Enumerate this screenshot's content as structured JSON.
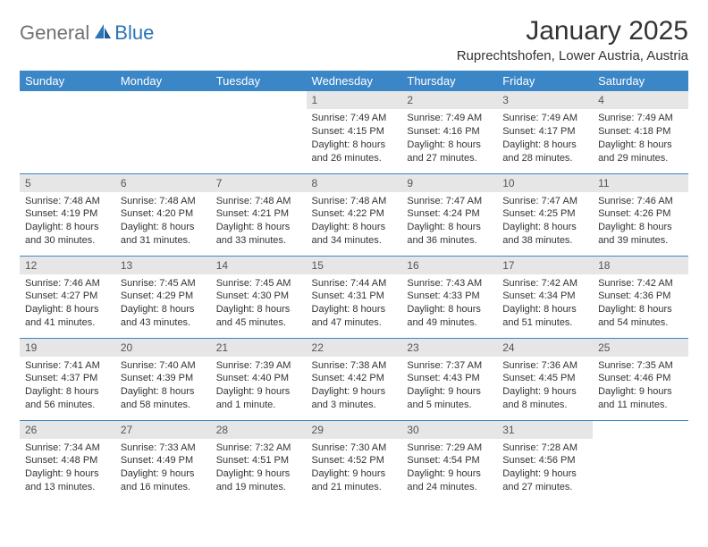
{
  "logo": {
    "general": "General",
    "blue": "Blue"
  },
  "title": "January 2025",
  "location": "Ruprechtshofen, Lower Austria, Austria",
  "colors": {
    "header_bg": "#3b86c7",
    "header_text": "#ffffff",
    "daynum_bg": "#e6e6e6",
    "daynum_text": "#555555",
    "body_text": "#333333",
    "rule": "#3b86c7",
    "logo_general": "#6f7176",
    "logo_blue": "#2b74b8",
    "page_bg": "#ffffff"
  },
  "typography": {
    "title_fontsize": 30,
    "location_fontsize": 15,
    "dayheader_fontsize": 13,
    "daynum_fontsize": 12,
    "body_fontsize": 11,
    "logo_fontsize": 22
  },
  "dayHeaders": [
    "Sunday",
    "Monday",
    "Tuesday",
    "Wednesday",
    "Thursday",
    "Friday",
    "Saturday"
  ],
  "weeks": [
    [
      null,
      null,
      null,
      {
        "n": "1",
        "l1": "Sunrise: 7:49 AM",
        "l2": "Sunset: 4:15 PM",
        "l3": "Daylight: 8 hours",
        "l4": "and 26 minutes."
      },
      {
        "n": "2",
        "l1": "Sunrise: 7:49 AM",
        "l2": "Sunset: 4:16 PM",
        "l3": "Daylight: 8 hours",
        "l4": "and 27 minutes."
      },
      {
        "n": "3",
        "l1": "Sunrise: 7:49 AM",
        "l2": "Sunset: 4:17 PM",
        "l3": "Daylight: 8 hours",
        "l4": "and 28 minutes."
      },
      {
        "n": "4",
        "l1": "Sunrise: 7:49 AM",
        "l2": "Sunset: 4:18 PM",
        "l3": "Daylight: 8 hours",
        "l4": "and 29 minutes."
      }
    ],
    [
      {
        "n": "5",
        "l1": "Sunrise: 7:48 AM",
        "l2": "Sunset: 4:19 PM",
        "l3": "Daylight: 8 hours",
        "l4": "and 30 minutes."
      },
      {
        "n": "6",
        "l1": "Sunrise: 7:48 AM",
        "l2": "Sunset: 4:20 PM",
        "l3": "Daylight: 8 hours",
        "l4": "and 31 minutes."
      },
      {
        "n": "7",
        "l1": "Sunrise: 7:48 AM",
        "l2": "Sunset: 4:21 PM",
        "l3": "Daylight: 8 hours",
        "l4": "and 33 minutes."
      },
      {
        "n": "8",
        "l1": "Sunrise: 7:48 AM",
        "l2": "Sunset: 4:22 PM",
        "l3": "Daylight: 8 hours",
        "l4": "and 34 minutes."
      },
      {
        "n": "9",
        "l1": "Sunrise: 7:47 AM",
        "l2": "Sunset: 4:24 PM",
        "l3": "Daylight: 8 hours",
        "l4": "and 36 minutes."
      },
      {
        "n": "10",
        "l1": "Sunrise: 7:47 AM",
        "l2": "Sunset: 4:25 PM",
        "l3": "Daylight: 8 hours",
        "l4": "and 38 minutes."
      },
      {
        "n": "11",
        "l1": "Sunrise: 7:46 AM",
        "l2": "Sunset: 4:26 PM",
        "l3": "Daylight: 8 hours",
        "l4": "and 39 minutes."
      }
    ],
    [
      {
        "n": "12",
        "l1": "Sunrise: 7:46 AM",
        "l2": "Sunset: 4:27 PM",
        "l3": "Daylight: 8 hours",
        "l4": "and 41 minutes."
      },
      {
        "n": "13",
        "l1": "Sunrise: 7:45 AM",
        "l2": "Sunset: 4:29 PM",
        "l3": "Daylight: 8 hours",
        "l4": "and 43 minutes."
      },
      {
        "n": "14",
        "l1": "Sunrise: 7:45 AM",
        "l2": "Sunset: 4:30 PM",
        "l3": "Daylight: 8 hours",
        "l4": "and 45 minutes."
      },
      {
        "n": "15",
        "l1": "Sunrise: 7:44 AM",
        "l2": "Sunset: 4:31 PM",
        "l3": "Daylight: 8 hours",
        "l4": "and 47 minutes."
      },
      {
        "n": "16",
        "l1": "Sunrise: 7:43 AM",
        "l2": "Sunset: 4:33 PM",
        "l3": "Daylight: 8 hours",
        "l4": "and 49 minutes."
      },
      {
        "n": "17",
        "l1": "Sunrise: 7:42 AM",
        "l2": "Sunset: 4:34 PM",
        "l3": "Daylight: 8 hours",
        "l4": "and 51 minutes."
      },
      {
        "n": "18",
        "l1": "Sunrise: 7:42 AM",
        "l2": "Sunset: 4:36 PM",
        "l3": "Daylight: 8 hours",
        "l4": "and 54 minutes."
      }
    ],
    [
      {
        "n": "19",
        "l1": "Sunrise: 7:41 AM",
        "l2": "Sunset: 4:37 PM",
        "l3": "Daylight: 8 hours",
        "l4": "and 56 minutes."
      },
      {
        "n": "20",
        "l1": "Sunrise: 7:40 AM",
        "l2": "Sunset: 4:39 PM",
        "l3": "Daylight: 8 hours",
        "l4": "and 58 minutes."
      },
      {
        "n": "21",
        "l1": "Sunrise: 7:39 AM",
        "l2": "Sunset: 4:40 PM",
        "l3": "Daylight: 9 hours",
        "l4": "and 1 minute."
      },
      {
        "n": "22",
        "l1": "Sunrise: 7:38 AM",
        "l2": "Sunset: 4:42 PM",
        "l3": "Daylight: 9 hours",
        "l4": "and 3 minutes."
      },
      {
        "n": "23",
        "l1": "Sunrise: 7:37 AM",
        "l2": "Sunset: 4:43 PM",
        "l3": "Daylight: 9 hours",
        "l4": "and 5 minutes."
      },
      {
        "n": "24",
        "l1": "Sunrise: 7:36 AM",
        "l2": "Sunset: 4:45 PM",
        "l3": "Daylight: 9 hours",
        "l4": "and 8 minutes."
      },
      {
        "n": "25",
        "l1": "Sunrise: 7:35 AM",
        "l2": "Sunset: 4:46 PM",
        "l3": "Daylight: 9 hours",
        "l4": "and 11 minutes."
      }
    ],
    [
      {
        "n": "26",
        "l1": "Sunrise: 7:34 AM",
        "l2": "Sunset: 4:48 PM",
        "l3": "Daylight: 9 hours",
        "l4": "and 13 minutes."
      },
      {
        "n": "27",
        "l1": "Sunrise: 7:33 AM",
        "l2": "Sunset: 4:49 PM",
        "l3": "Daylight: 9 hours",
        "l4": "and 16 minutes."
      },
      {
        "n": "28",
        "l1": "Sunrise: 7:32 AM",
        "l2": "Sunset: 4:51 PM",
        "l3": "Daylight: 9 hours",
        "l4": "and 19 minutes."
      },
      {
        "n": "29",
        "l1": "Sunrise: 7:30 AM",
        "l2": "Sunset: 4:52 PM",
        "l3": "Daylight: 9 hours",
        "l4": "and 21 minutes."
      },
      {
        "n": "30",
        "l1": "Sunrise: 7:29 AM",
        "l2": "Sunset: 4:54 PM",
        "l3": "Daylight: 9 hours",
        "l4": "and 24 minutes."
      },
      {
        "n": "31",
        "l1": "Sunrise: 7:28 AM",
        "l2": "Sunset: 4:56 PM",
        "l3": "Daylight: 9 hours",
        "l4": "and 27 minutes."
      },
      null
    ]
  ]
}
